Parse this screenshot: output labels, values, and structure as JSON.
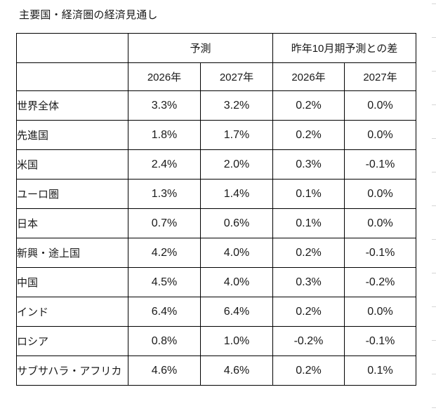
{
  "page": {
    "title": "主要国・経済圏の経済見通し"
  },
  "chart_data": {
    "type": "table",
    "title": "主要国・経済圏の経済見通し",
    "column_groups": [
      {
        "label": "予測",
        "span": 2
      },
      {
        "label": "昨年10月期予測との差",
        "span": 2
      }
    ],
    "columns": [
      "2026年",
      "2027年",
      "2026年",
      "2027年"
    ],
    "rows": [
      {
        "label": "世界全体",
        "values": [
          "3.3%",
          "3.2%",
          "0.2%",
          "0.0%"
        ]
      },
      {
        "label": "先進国",
        "values": [
          "1.8%",
          "1.7%",
          "0.2%",
          "0.0%"
        ]
      },
      {
        "label": "米国",
        "values": [
          "2.4%",
          "2.0%",
          "0.3%",
          "-0.1%"
        ]
      },
      {
        "label": "ユーロ圏",
        "values": [
          "1.3%",
          "1.4%",
          "0.1%",
          "0.0%"
        ]
      },
      {
        "label": "日本",
        "values": [
          "0.7%",
          "0.6%",
          "0.1%",
          "0.0%"
        ]
      },
      {
        "label": "新興・途上国",
        "values": [
          "4.2%",
          "4.0%",
          "0.2%",
          "-0.1%"
        ]
      },
      {
        "label": "中国",
        "values": [
          "4.5%",
          "4.0%",
          "0.3%",
          "-0.2%"
        ]
      },
      {
        "label": "インド",
        "values": [
          "6.4%",
          "6.4%",
          "0.2%",
          "0.0%"
        ]
      },
      {
        "label": "ロシア",
        "values": [
          "0.8%",
          "1.0%",
          "-0.2%",
          "-0.1%"
        ]
      },
      {
        "label": "サブサハラ・アフリカ",
        "values": [
          "4.6%",
          "4.6%",
          "0.2%",
          "0.1%"
        ]
      }
    ],
    "layout_hints": {
      "grid": true,
      "values_are_percent": true
    }
  },
  "colors": {
    "text": "#1a1a1a",
    "border": "#000000",
    "background": "#ffffff",
    "edge_tick": "#d6d6d6"
  }
}
